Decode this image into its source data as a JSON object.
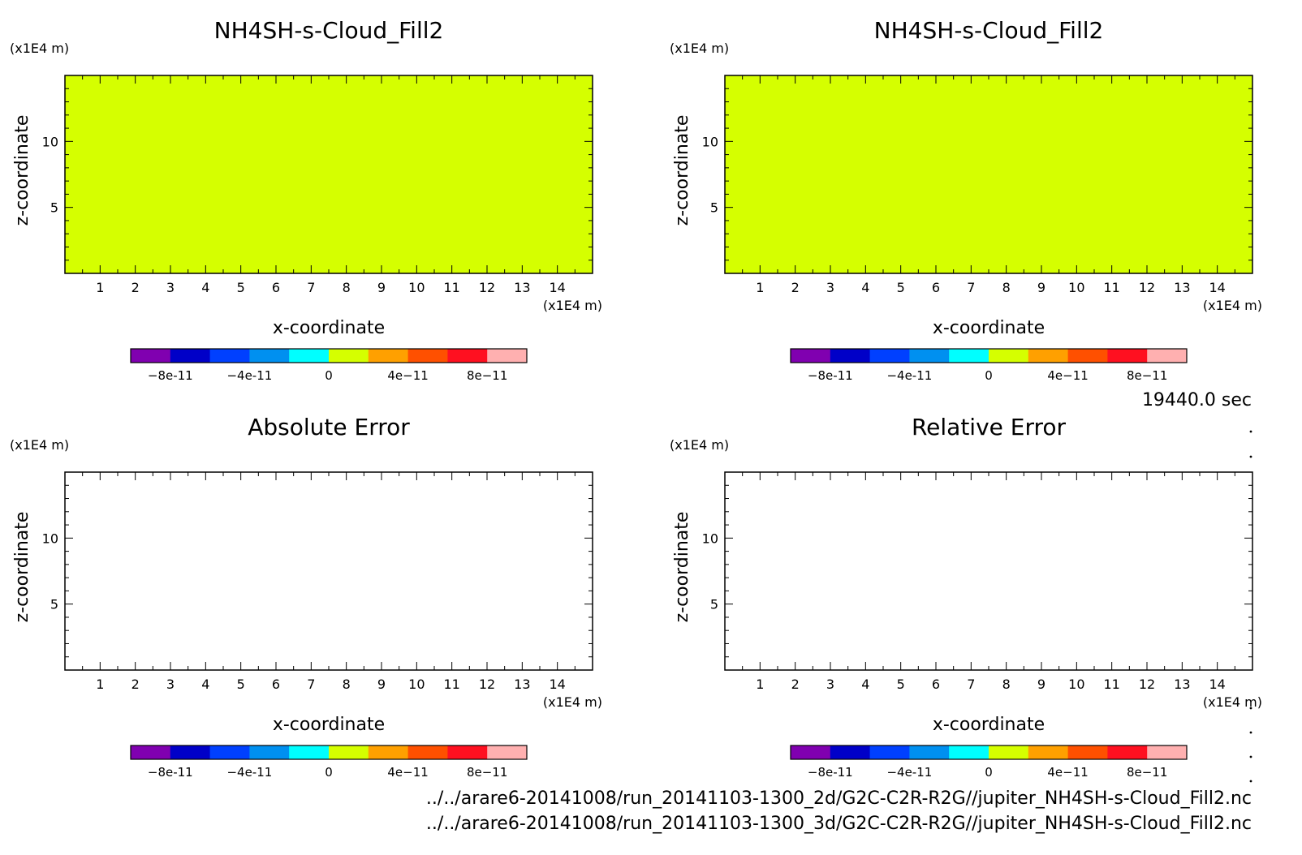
{
  "time_label": "19440.0 sec",
  "footer": {
    "file1": "../../arare6-20141008/run_20141103-1300_2d/G2C-C2R-R2G//jupiter_NH4SH-s-Cloud_Fill2.nc",
    "file2": "../../arare6-20141008/run_20141103-1300_3d/G2C-C2R-R2G//jupiter_NH4SH-s-Cloud_Fill2.nc"
  },
  "colors": {
    "field_fill": "#d5ff00",
    "empty_fill": "#ffffff",
    "colorbar": [
      "#8000b0",
      "#0000c8",
      "#0040ff",
      "#0090f0",
      "#00ffff",
      "#d5ff00",
      "#ffa000",
      "#ff5000",
      "#ff1020",
      "#ffb0b0"
    ]
  },
  "chart_data": [
    {
      "type": "heatmap",
      "title": "NH4SH-s-Cloud_Fill2",
      "xlabel": "x-coordinate",
      "ylabel": "z-coordinate",
      "x_unit": "(x1E4 m)",
      "y_unit": "(x1E4 m)",
      "x_ticks": [
        "1",
        "2",
        "3",
        "4",
        "5",
        "6",
        "7",
        "8",
        "9",
        "10",
        "11",
        "12",
        "13",
        "14"
      ],
      "y_ticks": [
        "5",
        "10"
      ],
      "xlim": [
        0,
        15
      ],
      "ylim": [
        0,
        15
      ],
      "field_value": 0,
      "fill": "uniform",
      "colorbar_ticks": [
        "-8e-11",
        "-4e-11",
        "0",
        "4e-11",
        "8e-11"
      ],
      "colorbar_range": [
        -1e-10,
        1e-10
      ]
    },
    {
      "type": "heatmap",
      "title": "NH4SH-s-Cloud_Fill2",
      "xlabel": "x-coordinate",
      "ylabel": "z-coordinate",
      "x_unit": "(x1E4 m)",
      "y_unit": "(x1E4 m)",
      "x_ticks": [
        "1",
        "2",
        "3",
        "4",
        "5",
        "6",
        "7",
        "8",
        "9",
        "10",
        "11",
        "12",
        "13",
        "14"
      ],
      "y_ticks": [
        "5",
        "10"
      ],
      "xlim": [
        0,
        15
      ],
      "ylim": [
        0,
        15
      ],
      "field_value": 0,
      "fill": "uniform",
      "colorbar_ticks": [
        "-8e-11",
        "-4e-11",
        "0",
        "4e-11",
        "8e-11"
      ],
      "colorbar_range": [
        -1e-10,
        1e-10
      ]
    },
    {
      "type": "heatmap",
      "title": "Absolute Error",
      "xlabel": "x-coordinate",
      "ylabel": "z-coordinate",
      "x_unit": "(x1E4 m)",
      "y_unit": "(x1E4 m)",
      "x_ticks": [
        "1",
        "2",
        "3",
        "4",
        "5",
        "6",
        "7",
        "8",
        "9",
        "10",
        "11",
        "12",
        "13",
        "14"
      ],
      "y_ticks": [
        "5",
        "10"
      ],
      "xlim": [
        0,
        15
      ],
      "ylim": [
        0,
        15
      ],
      "field_value": null,
      "fill": "none",
      "colorbar_ticks": [
        "-8e-11",
        "-4e-11",
        "0",
        "4e-11",
        "8e-11"
      ],
      "colorbar_range": [
        -1e-10,
        1e-10
      ]
    },
    {
      "type": "heatmap",
      "title": "Relative Error",
      "xlabel": "x-coordinate",
      "ylabel": "z-coordinate",
      "x_unit": "(x1E4 m)",
      "y_unit": "(x1E4 m)",
      "x_ticks": [
        "1",
        "2",
        "3",
        "4",
        "5",
        "6",
        "7",
        "8",
        "9",
        "10",
        "11",
        "12",
        "13",
        "14"
      ],
      "y_ticks": [
        "5",
        "10"
      ],
      "xlim": [
        0,
        15
      ],
      "ylim": [
        0,
        15
      ],
      "field_value": null,
      "fill": "none",
      "colorbar_ticks": [
        "-8e-11",
        "-4e-11",
        "0",
        "4e-11",
        "8e-11"
      ],
      "colorbar_range": [
        -1e-10,
        1e-10
      ]
    }
  ]
}
